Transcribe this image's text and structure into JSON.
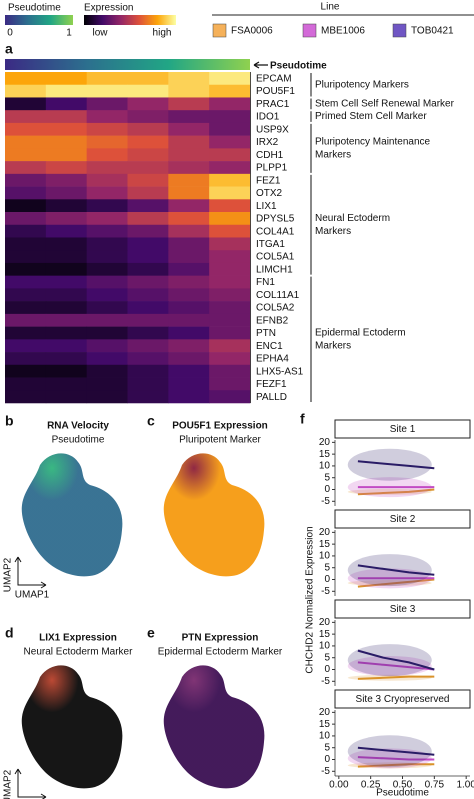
{
  "legend": {
    "pseudotime": {
      "title": "Pseudotime",
      "low": "0",
      "high": "1",
      "colors": [
        "#3b2a84",
        "#2c6f8e",
        "#21a685",
        "#8fd14f"
      ]
    },
    "expression": {
      "title": "Expression",
      "low": "low",
      "high": "high"
    },
    "lines": {
      "title": "Line",
      "items": [
        {
          "name": "FSA0006",
          "color": "#f5b15a"
        },
        {
          "name": "MBE1006",
          "color": "#d36ad8"
        },
        {
          "name": "TOB0421",
          "color": "#7056c4"
        }
      ]
    }
  },
  "heatmap": {
    "label": "a",
    "bar_label": "Pseudotime",
    "colormap": [
      "#000004",
      "#420a68",
      "#932667",
      "#dd513a",
      "#fca50a",
      "#fcffa4"
    ],
    "groups": [
      {
        "label": [
          "Pluripotency Markers"
        ],
        "genes": [
          {
            "name": "EPCAM",
            "values": [
              0.8,
              0.8,
              0.85,
              0.85,
              0.9,
              0.95
            ]
          },
          {
            "name": "POU5F1",
            "values": [
              0.9,
              0.95,
              0.95,
              0.95,
              0.9,
              0.85
            ]
          }
        ]
      },
      {
        "label": [
          "Stem Cell Self Renewal Marker"
        ],
        "genes": [
          {
            "name": "PRAC1",
            "values": [
              0.1,
              0.2,
              0.3,
              0.4,
              0.5,
              0.4
            ]
          }
        ]
      },
      {
        "label": [
          "Primed Stem Cell Marker"
        ],
        "genes": [
          {
            "name": "IDO1",
            "values": [
              0.5,
              0.5,
              0.4,
              0.35,
              0.3,
              0.3
            ]
          }
        ]
      },
      {
        "label": [
          "Pluripotency Maintenance",
          "Markers"
        ],
        "genes": [
          {
            "name": "USP9X",
            "values": [
              0.6,
              0.6,
              0.55,
              0.5,
              0.4,
              0.3
            ]
          },
          {
            "name": "IRX2",
            "values": [
              0.7,
              0.7,
              0.65,
              0.6,
              0.5,
              0.4
            ]
          },
          {
            "name": "CDH1",
            "values": [
              0.7,
              0.7,
              0.6,
              0.55,
              0.5,
              0.5
            ]
          },
          {
            "name": "PLPP1",
            "values": [
              0.5,
              0.55,
              0.5,
              0.5,
              0.45,
              0.4
            ]
          }
        ]
      },
      {
        "label": [
          "Neural Ectoderm",
          "Markers"
        ],
        "genes": [
          {
            "name": "FEZ1",
            "values": [
              0.3,
              0.35,
              0.45,
              0.55,
              0.7,
              0.85
            ]
          },
          {
            "name": "OTX2",
            "values": [
              0.25,
              0.3,
              0.4,
              0.5,
              0.7,
              0.9
            ]
          },
          {
            "name": "LIX1",
            "values": [
              0.05,
              0.1,
              0.15,
              0.25,
              0.4,
              0.6
            ]
          },
          {
            "name": "DPYSL5",
            "values": [
              0.3,
              0.35,
              0.4,
              0.5,
              0.6,
              0.75
            ]
          },
          {
            "name": "COL4A1",
            "values": [
              0.15,
              0.2,
              0.25,
              0.3,
              0.45,
              0.6
            ]
          },
          {
            "name": "ITGA1",
            "values": [
              0.1,
              0.1,
              0.15,
              0.2,
              0.3,
              0.45
            ]
          },
          {
            "name": "COL5A1",
            "values": [
              0.1,
              0.1,
              0.15,
              0.2,
              0.3,
              0.4
            ]
          },
          {
            "name": "LIMCH1",
            "values": [
              0.05,
              0.05,
              0.1,
              0.15,
              0.25,
              0.4
            ]
          }
        ]
      },
      {
        "label": [
          "Epidermal Ectoderm",
          "Markers"
        ],
        "genes": [
          {
            "name": "FN1",
            "values": [
              0.2,
              0.2,
              0.25,
              0.3,
              0.35,
              0.4
            ]
          },
          {
            "name": "COL11A1",
            "values": [
              0.15,
              0.15,
              0.2,
              0.25,
              0.3,
              0.35
            ]
          },
          {
            "name": "COL5A2",
            "values": [
              0.1,
              0.1,
              0.15,
              0.2,
              0.25,
              0.3
            ]
          },
          {
            "name": "EFNB2",
            "values": [
              0.3,
              0.3,
              0.3,
              0.3,
              0.3,
              0.3
            ]
          },
          {
            "name": "PTN",
            "values": [
              0.1,
              0.1,
              0.1,
              0.15,
              0.2,
              0.3
            ]
          },
          {
            "name": "ENC1",
            "values": [
              0.2,
              0.2,
              0.25,
              0.3,
              0.35,
              0.45
            ]
          },
          {
            "name": "EPHA4",
            "values": [
              0.15,
              0.15,
              0.2,
              0.25,
              0.3,
              0.4
            ]
          },
          {
            "name": "LHX5-AS1",
            "values": [
              0.05,
              0.05,
              0.1,
              0.15,
              0.2,
              0.3
            ]
          },
          {
            "name": "FEZF1",
            "values": [
              0.1,
              0.1,
              0.1,
              0.15,
              0.2,
              0.3
            ]
          },
          {
            "name": "PALLD",
            "values": [
              0.1,
              0.1,
              0.1,
              0.15,
              0.2,
              0.25
            ]
          }
        ]
      }
    ]
  },
  "umap_axes": [
    "UMAP2",
    "UMAP1"
  ],
  "umap": [
    {
      "label": "b",
      "title": "RNA Velocity",
      "subtitle": "Pseudotime",
      "colors": [
        "#2f6c8e",
        "#2fb47c"
      ]
    },
    {
      "label": "c",
      "title": "POU5F1 Expression",
      "subtitle": "Pluripotent Marker",
      "colors": [
        "#f59a10",
        "#8a1d3a"
      ]
    },
    {
      "label": "d",
      "title": "LIX1 Expression",
      "subtitle": "Neural Ectoderm Marker",
      "colors": [
        "#0a0a0a",
        "#b8402a"
      ]
    },
    {
      "label": "e",
      "title": "PTN Expression",
      "subtitle": "Epidermal Ectoderm Marker",
      "colors": [
        "#3a0f52",
        "#7a2a6e"
      ]
    }
  ],
  "panel_f": {
    "label": "f",
    "type": "line",
    "ylabel": "CHCHD2 Normalized Expression",
    "xlabel": "Pseudotime",
    "x": [
      0.15,
      0.35,
      0.55,
      0.75
    ],
    "xlim": [
      -0.03,
      1.03
    ],
    "xticks": [
      {
        "value": 0,
        "label": "0.00"
      },
      {
        "value": 0.25,
        "label": "0.25"
      },
      {
        "value": 0.5,
        "label": "0.50"
      },
      {
        "value": 0.75,
        "label": "0.75"
      },
      {
        "value": 1,
        "label": "1.00"
      }
    ],
    "ylim": [
      -7,
      21
    ],
    "yticks": [
      -5,
      0,
      5,
      10,
      15,
      20
    ],
    "series_colors": [
      "#d9922a",
      "#c24ac4",
      "#2a1c66"
    ],
    "facets": [
      {
        "title": "Site 1",
        "values": [
          [
            -2,
            -1.5,
            -1,
            0
          ],
          [
            1,
            1,
            1,
            1
          ],
          [
            12,
            11,
            10,
            9
          ]
        ]
      },
      {
        "title": "Site 2",
        "values": [
          [
            -3,
            -2,
            -1,
            0
          ],
          [
            0.5,
            0.5,
            0.5,
            0.5
          ],
          [
            6,
            4.5,
            3,
            2
          ]
        ]
      },
      {
        "title": "Site 3",
        "values": [
          [
            -4,
            -3.5,
            -3,
            -3
          ],
          [
            3,
            2,
            1,
            0
          ],
          [
            8,
            5,
            3,
            0
          ]
        ]
      },
      {
        "title": "Site 3 Cryopreserved",
        "values": [
          [
            -3,
            -2.5,
            -2,
            -2
          ],
          [
            1,
            0.5,
            0,
            0
          ],
          [
            5,
            4,
            3,
            2
          ]
        ]
      }
    ]
  }
}
